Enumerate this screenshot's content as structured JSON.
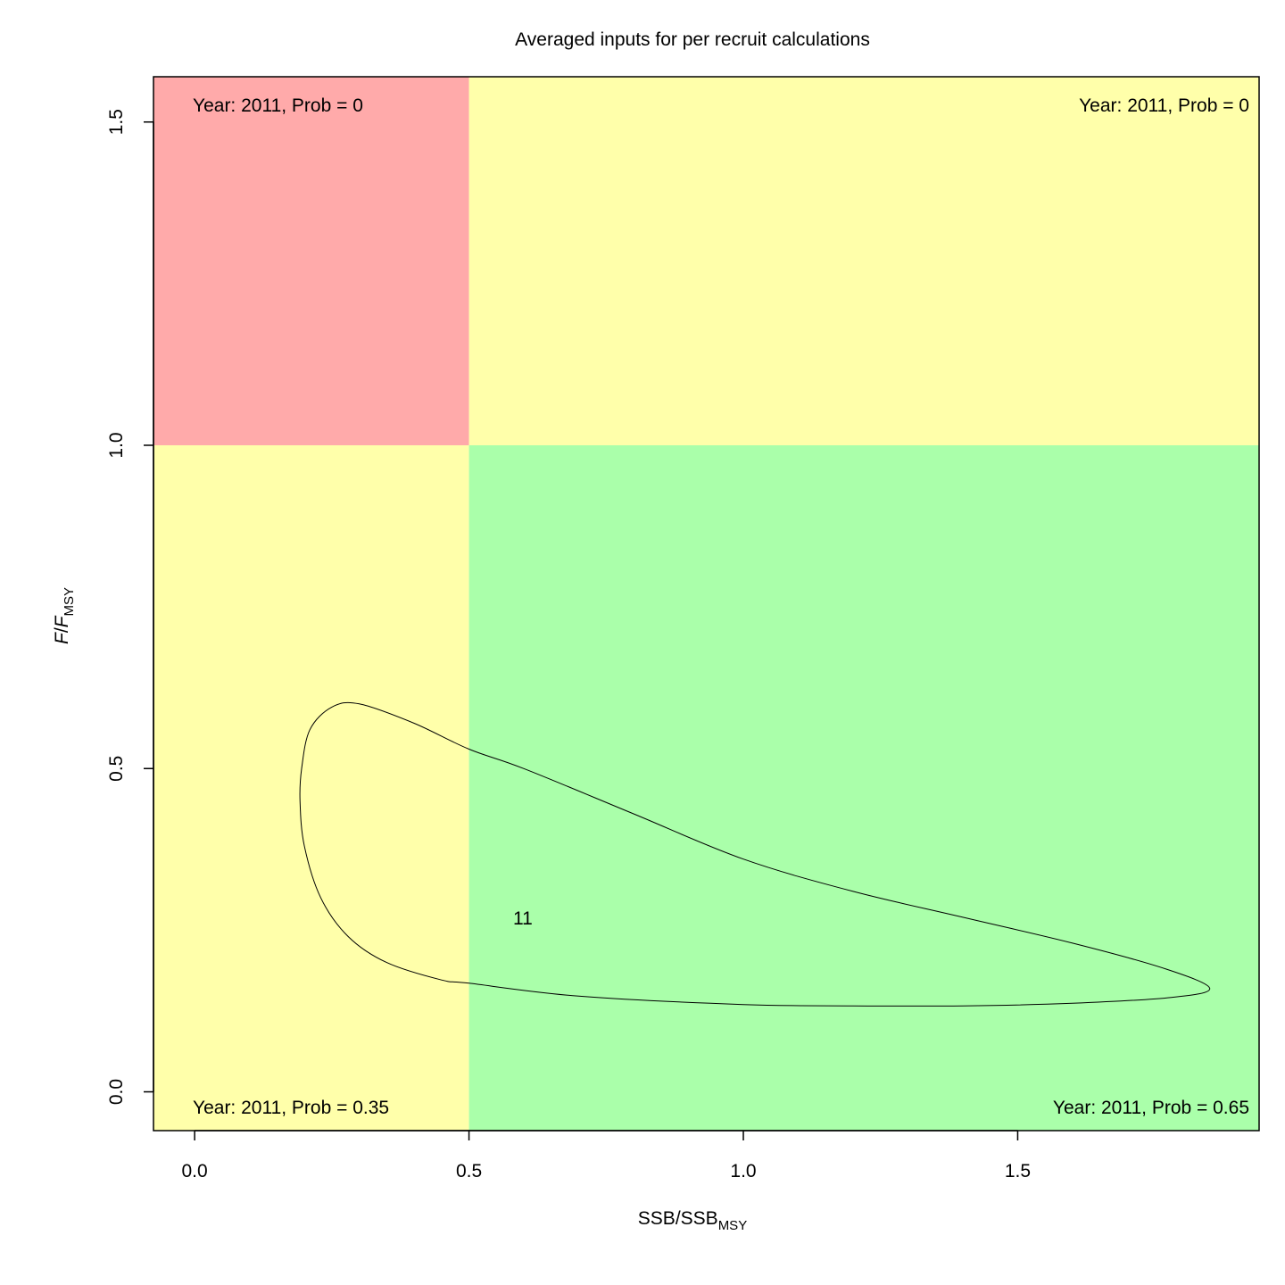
{
  "chart_data": {
    "type": "scatter",
    "title": "Averaged inputs for per recruit calculations",
    "xlabel": {
      "main": "SSB/SSB",
      "sub": "MSY"
    },
    "ylabel": {
      "main": "F",
      "slash": "/",
      "italic2": "F",
      "sub": "MSY"
    },
    "xlim": [
      -0.075,
      1.94
    ],
    "ylim": [
      -0.06,
      1.57
    ],
    "x_ticks": [
      0.0,
      0.5,
      1.0,
      1.5
    ],
    "x_tick_labels": [
      "0.0",
      "0.5",
      "1.0",
      "1.5"
    ],
    "y_ticks": [
      0.0,
      0.5,
      1.0,
      1.5
    ],
    "y_tick_labels": [
      "0.0",
      "0.5",
      "1.0",
      "1.5"
    ],
    "thresholds": {
      "x": 0.5,
      "y": 1.0
    },
    "quadrants": [
      {
        "id": "top-left",
        "color": "#ffaaaa",
        "label": "Year: 2011, Prob = 0"
      },
      {
        "id": "top-right",
        "color": "#ffffaa",
        "label": "Year: 2011, Prob = 0"
      },
      {
        "id": "bottom-left",
        "color": "#ffffaa",
        "label": "Year: 2011, Prob = 0.35"
      },
      {
        "id": "bottom-right",
        "color": "#aaffaa",
        "label": "Year: 2011, Prob = 0.65"
      }
    ],
    "point_label": {
      "text": "11",
      "x": 0.6,
      "y": 0.27
    },
    "contour": [
      [
        1.85,
        0.16
      ],
      [
        1.77,
        0.19
      ],
      [
        1.6,
        0.23
      ],
      [
        1.4,
        0.27
      ],
      [
        1.2,
        0.31
      ],
      [
        1.0,
        0.36
      ],
      [
        0.8,
        0.43
      ],
      [
        0.6,
        0.5
      ],
      [
        0.5,
        0.53
      ],
      [
        0.4,
        0.57
      ],
      [
        0.3,
        0.6
      ],
      [
        0.25,
        0.595
      ],
      [
        0.21,
        0.56
      ],
      [
        0.195,
        0.5
      ],
      [
        0.192,
        0.45
      ],
      [
        0.2,
        0.38
      ],
      [
        0.23,
        0.3
      ],
      [
        0.28,
        0.24
      ],
      [
        0.35,
        0.2
      ],
      [
        0.45,
        0.173
      ],
      [
        0.5,
        0.168
      ],
      [
        0.7,
        0.148
      ],
      [
        1.0,
        0.135
      ],
      [
        1.2,
        0.133
      ],
      [
        1.4,
        0.133
      ],
      [
        1.6,
        0.137
      ],
      [
        1.78,
        0.146
      ],
      [
        1.85,
        0.16
      ]
    ]
  }
}
